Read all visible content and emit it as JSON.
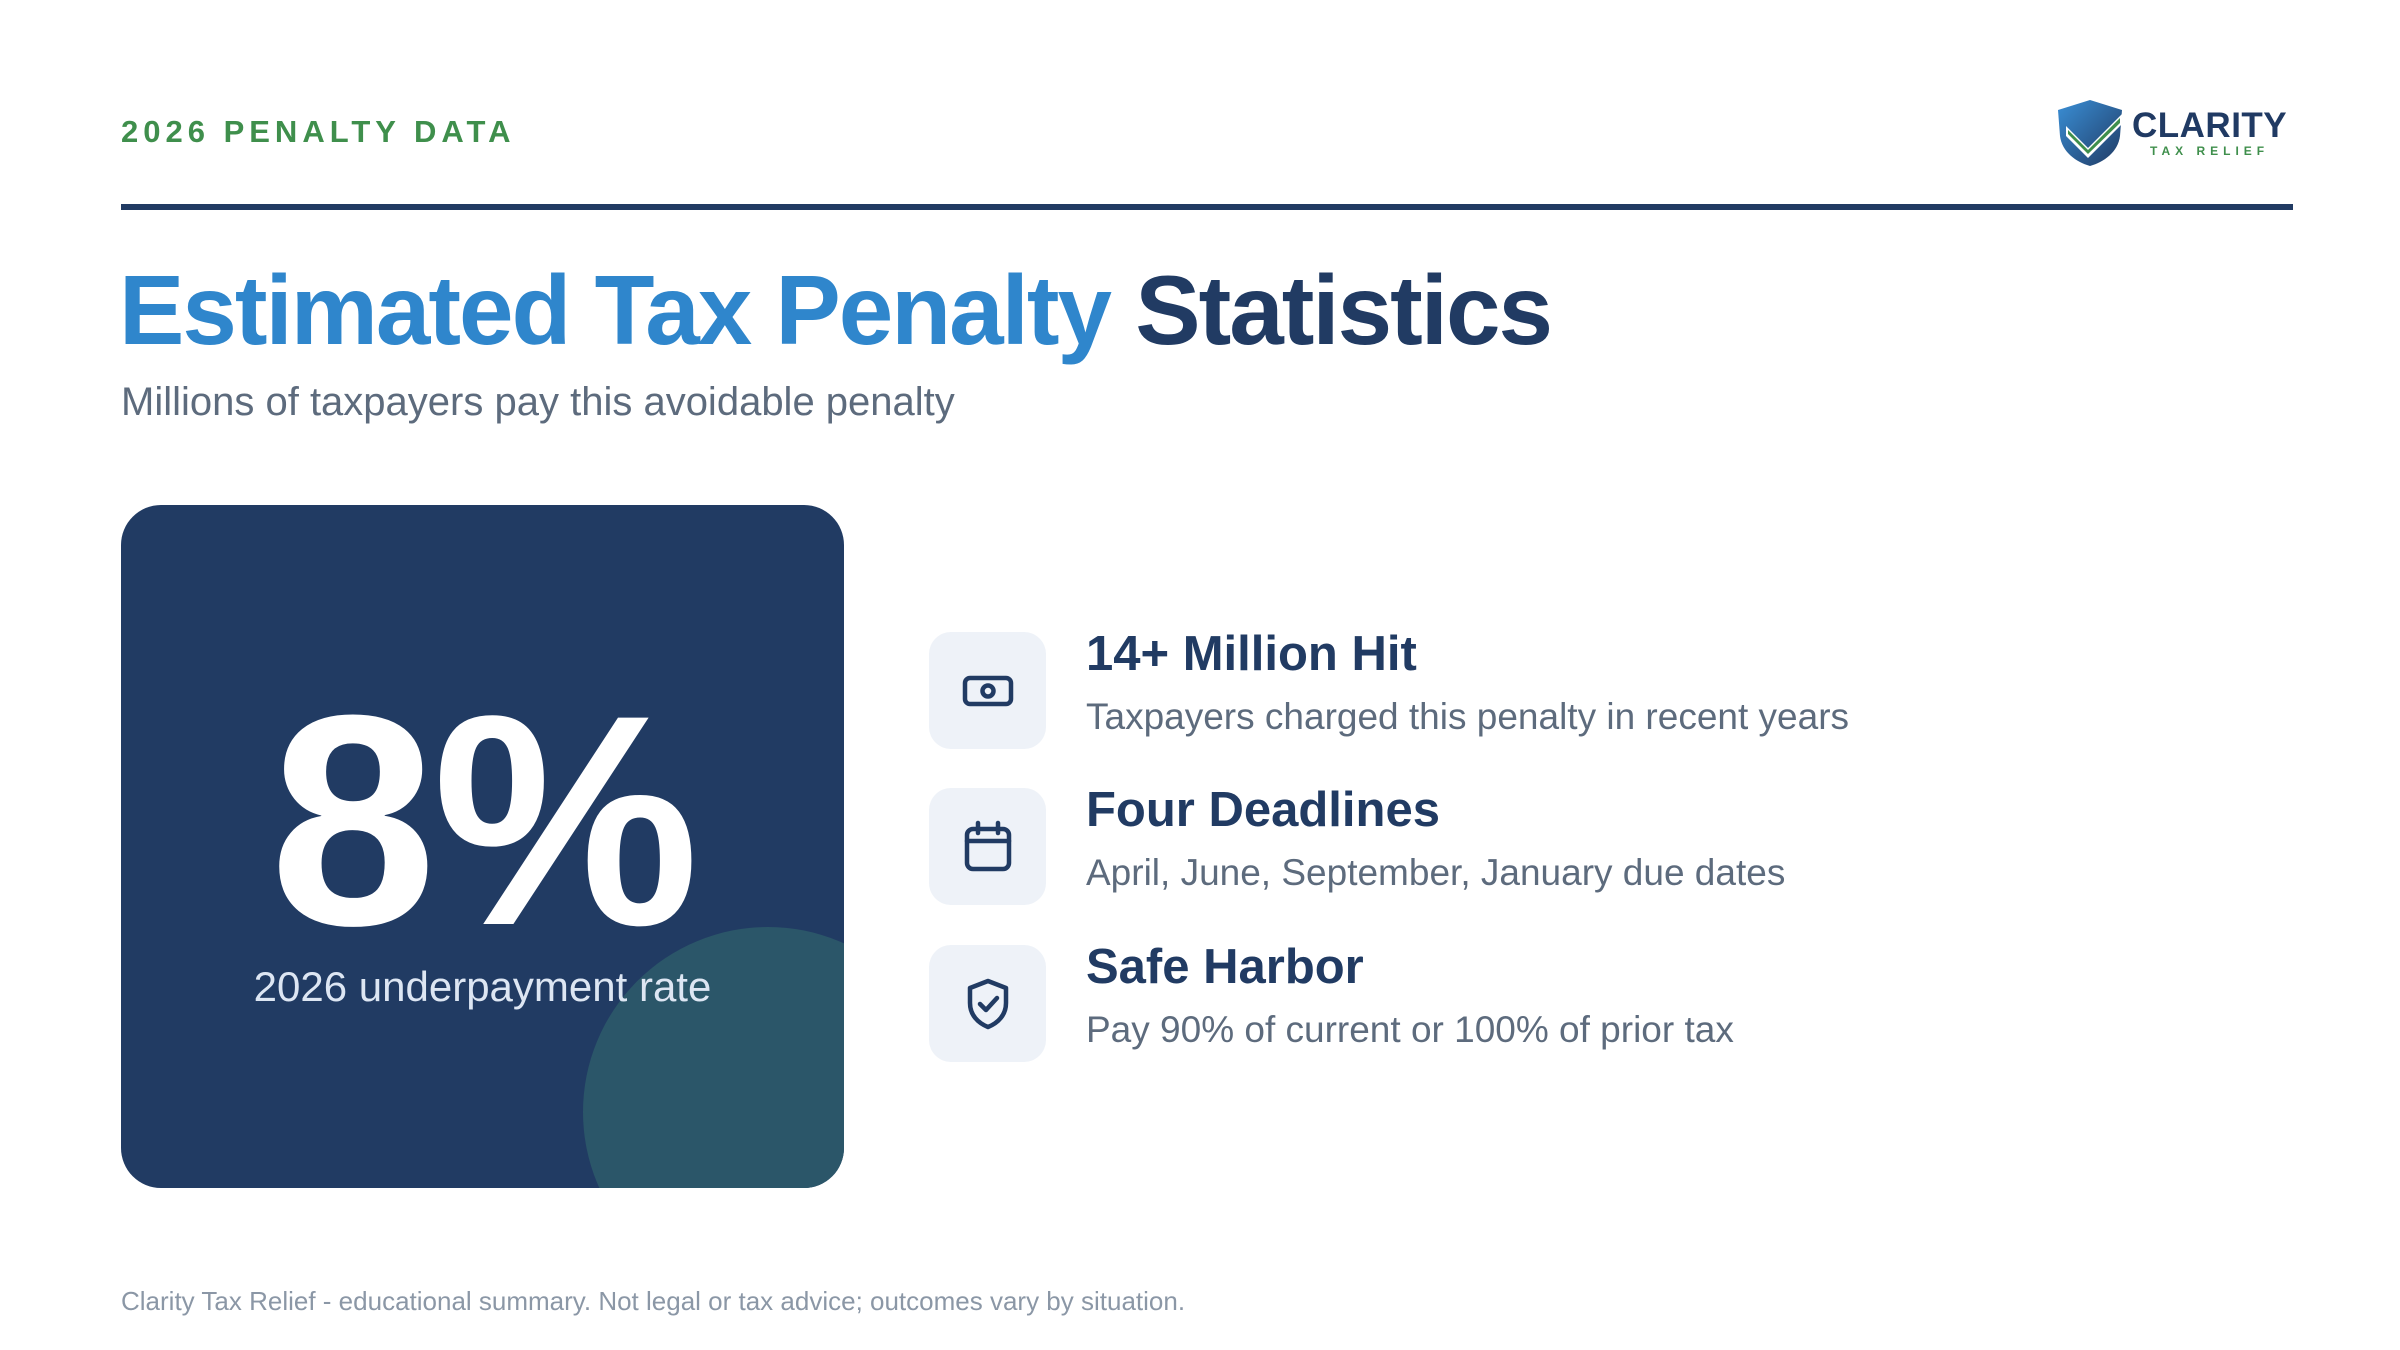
{
  "header": {
    "eyebrow": "2026 PENALTY DATA",
    "logo": {
      "name": "CLARITY",
      "tagline": "TAX RELIEF",
      "icon": "shield-check-logo-icon"
    }
  },
  "title": {
    "accent": "Estimated Tax Penalty",
    "main": "Statistics"
  },
  "subtitle": "Millions of taxpayers pay this avoidable penalty",
  "stat": {
    "value": "8%",
    "caption": "2026 underpayment rate"
  },
  "features": [
    {
      "icon": "money-bill-icon",
      "title": "14+ Million Hit",
      "description": "Taxpayers charged this penalty in recent years"
    },
    {
      "icon": "calendar-icon",
      "title": "Four Deadlines",
      "description": "April, June, September, January due dates"
    },
    {
      "icon": "shield-check-icon",
      "title": "Safe Harbor",
      "description": "Pay 90% of current or 100% of prior tax"
    }
  ],
  "footer": {
    "disclaimer": "Clarity Tax Relief - educational summary. Not legal or tax advice; outcomes vary by situation."
  },
  "colors": {
    "brand_navy": "#213b63",
    "accent_blue": "#2f86cc",
    "brand_green": "#3f8f4c",
    "muted_text": "#5d6b7d",
    "icon_tile": "#eef2f8"
  }
}
